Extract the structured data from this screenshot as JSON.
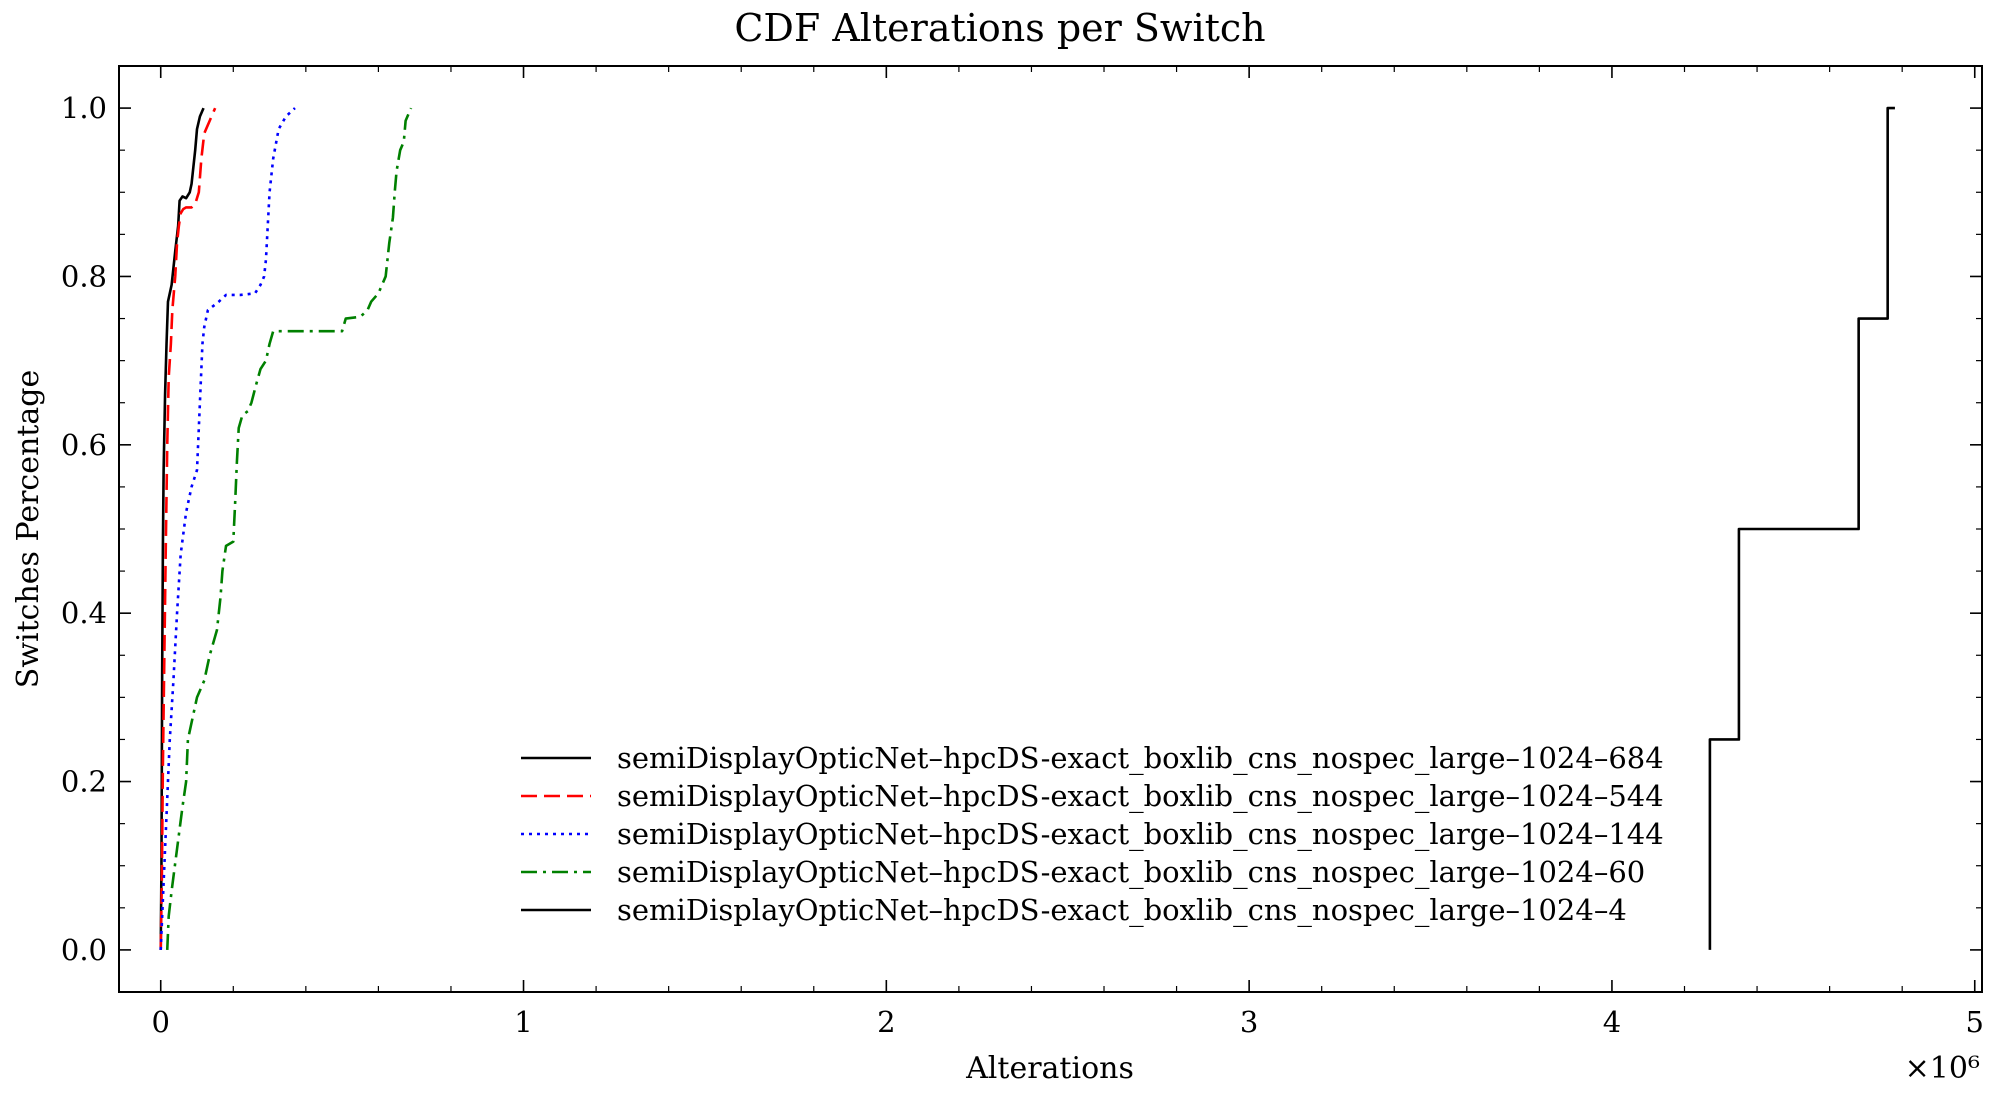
{
  "chart_data": {
    "type": "line",
    "title": "CDF Alterations per Switch",
    "xlabel": "Alterations",
    "ylabel": "Switches Percentage",
    "x_multiplier_label": "×10⁶",
    "xlim": [
      -0.115,
      5.02
    ],
    "ylim": [
      -0.05,
      1.05
    ],
    "x_ticks": [
      0,
      1,
      2,
      3,
      4,
      5
    ],
    "x_tick_labels": [
      "0",
      "1",
      "2",
      "3",
      "4",
      "5"
    ],
    "y_ticks": [
      0.0,
      0.2,
      0.4,
      0.6,
      0.8,
      1.0
    ],
    "y_tick_labels": [
      "0.0",
      "0.2",
      "0.4",
      "0.6",
      "0.8",
      "1.0"
    ],
    "grid": false,
    "legend_position": "lower-center",
    "series": [
      {
        "name": "semiDisplayOpticNet–hpcDS-exact_boxlib_cns_nospec_large–1024–684",
        "color": "#000000",
        "dash": "solid",
        "points": [
          [
            0.0,
            0.0
          ],
          [
            0.002,
            0.1
          ],
          [
            0.004,
            0.33
          ],
          [
            0.006,
            0.48
          ],
          [
            0.008,
            0.57
          ],
          [
            0.012,
            0.66
          ],
          [
            0.016,
            0.72
          ],
          [
            0.02,
            0.77
          ],
          [
            0.03,
            0.79
          ],
          [
            0.04,
            0.83
          ],
          [
            0.048,
            0.86
          ],
          [
            0.052,
            0.89
          ],
          [
            0.06,
            0.895
          ],
          [
            0.07,
            0.893
          ],
          [
            0.08,
            0.9
          ],
          [
            0.085,
            0.91
          ],
          [
            0.09,
            0.93
          ],
          [
            0.095,
            0.95
          ],
          [
            0.1,
            0.975
          ],
          [
            0.108,
            0.99
          ],
          [
            0.118,
            1.0
          ]
        ]
      },
      {
        "name": "semiDisplayOpticNet–hpcDS-exact_boxlib_cns_nospec_large–1024–544",
        "color": "#ff0000",
        "dash": "dashed",
        "points": [
          [
            0.0,
            0.0
          ],
          [
            0.003,
            0.08
          ],
          [
            0.006,
            0.22
          ],
          [
            0.01,
            0.35
          ],
          [
            0.014,
            0.48
          ],
          [
            0.018,
            0.6
          ],
          [
            0.022,
            0.68
          ],
          [
            0.028,
            0.72
          ],
          [
            0.032,
            0.76
          ],
          [
            0.04,
            0.8
          ],
          [
            0.045,
            0.84
          ],
          [
            0.05,
            0.86
          ],
          [
            0.055,
            0.875
          ],
          [
            0.062,
            0.88
          ],
          [
            0.07,
            0.882
          ],
          [
            0.085,
            0.882
          ],
          [
            0.095,
            0.886
          ],
          [
            0.105,
            0.9
          ],
          [
            0.112,
            0.94
          ],
          [
            0.12,
            0.97
          ],
          [
            0.135,
            0.985
          ],
          [
            0.15,
            1.0
          ]
        ]
      },
      {
        "name": "semiDisplayOpticNet–hpcDS-exact_boxlib_cns_nospec_large–1024–144",
        "color": "#0000ff",
        "dash": "dotted",
        "points": [
          [
            0.0,
            0.0
          ],
          [
            0.015,
            0.15
          ],
          [
            0.025,
            0.25
          ],
          [
            0.035,
            0.32
          ],
          [
            0.045,
            0.4
          ],
          [
            0.055,
            0.47
          ],
          [
            0.07,
            0.52
          ],
          [
            0.085,
            0.55
          ],
          [
            0.1,
            0.57
          ],
          [
            0.105,
            0.62
          ],
          [
            0.11,
            0.67
          ],
          [
            0.115,
            0.72
          ],
          [
            0.12,
            0.74
          ],
          [
            0.13,
            0.76
          ],
          [
            0.145,
            0.765
          ],
          [
            0.16,
            0.77
          ],
          [
            0.18,
            0.778
          ],
          [
            0.22,
            0.778
          ],
          [
            0.26,
            0.78
          ],
          [
            0.275,
            0.79
          ],
          [
            0.285,
            0.8
          ],
          [
            0.29,
            0.82
          ],
          [
            0.295,
            0.86
          ],
          [
            0.3,
            0.9
          ],
          [
            0.31,
            0.94
          ],
          [
            0.325,
            0.975
          ],
          [
            0.345,
            0.99
          ],
          [
            0.37,
            1.0
          ]
        ]
      },
      {
        "name": "semiDisplayOpticNet–hpcDS-exact_boxlib_cns_nospec_large–1024–60",
        "color": "#008000",
        "dash": "dashdot",
        "points": [
          [
            0.018,
            0.0
          ],
          [
            0.022,
            0.04
          ],
          [
            0.03,
            0.07
          ],
          [
            0.045,
            0.12
          ],
          [
            0.06,
            0.17
          ],
          [
            0.07,
            0.2
          ],
          [
            0.075,
            0.25
          ],
          [
            0.085,
            0.27
          ],
          [
            0.1,
            0.3
          ],
          [
            0.12,
            0.32
          ],
          [
            0.135,
            0.35
          ],
          [
            0.155,
            0.38
          ],
          [
            0.165,
            0.42
          ],
          [
            0.17,
            0.45
          ],
          [
            0.18,
            0.48
          ],
          [
            0.2,
            0.485
          ],
          [
            0.205,
            0.53
          ],
          [
            0.21,
            0.58
          ],
          [
            0.215,
            0.62
          ],
          [
            0.225,
            0.635
          ],
          [
            0.24,
            0.64
          ],
          [
            0.25,
            0.65
          ],
          [
            0.262,
            0.67
          ],
          [
            0.275,
            0.69
          ],
          [
            0.29,
            0.7
          ],
          [
            0.3,
            0.72
          ],
          [
            0.31,
            0.735
          ],
          [
            0.38,
            0.735
          ],
          [
            0.5,
            0.735
          ],
          [
            0.51,
            0.75
          ],
          [
            0.55,
            0.752
          ],
          [
            0.57,
            0.76
          ],
          [
            0.58,
            0.77
          ],
          [
            0.6,
            0.78
          ],
          [
            0.62,
            0.8
          ],
          [
            0.63,
            0.84
          ],
          [
            0.64,
            0.87
          ],
          [
            0.645,
            0.9
          ],
          [
            0.65,
            0.925
          ],
          [
            0.66,
            0.95
          ],
          [
            0.67,
            0.96
          ],
          [
            0.675,
            0.985
          ],
          [
            0.69,
            1.0
          ]
        ]
      },
      {
        "name": "semiDisplayOpticNet–hpcDS-exact_boxlib_cns_nospec_large–1024–4",
        "color": "#000000",
        "dash": "solid",
        "points": [
          [
            4.27,
            0.0
          ],
          [
            4.27,
            0.25
          ],
          [
            4.35,
            0.25
          ],
          [
            4.35,
            0.5
          ],
          [
            4.68,
            0.5
          ],
          [
            4.68,
            0.75
          ],
          [
            4.76,
            0.75
          ],
          [
            4.76,
            1.0
          ],
          [
            4.78,
            1.0
          ]
        ]
      }
    ]
  }
}
